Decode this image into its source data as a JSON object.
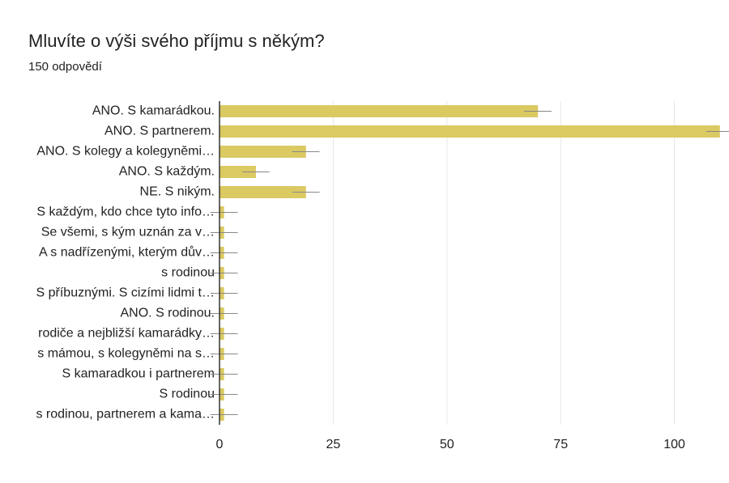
{
  "chart_data": {
    "type": "bar",
    "orientation": "horizontal",
    "title": "Mluvíte o výši svého příjmu s někým?",
    "subtitle": "150 odpovědí",
    "categories": [
      "ANO. S kamarádkou.",
      "ANO. S partnerem.",
      "ANO. S kolegy a kolegyněmi…",
      "ANO. S každým.",
      "NE. S nikým.",
      "S každým, kdo chce tyto info…",
      "Se všemi, s kým uznán za v…",
      "A s nadřízenými, kterým dův…",
      "s rodinou",
      "S příbuznými. S cizími lidmi t…",
      "ANO. S rodinou.",
      "rodiče a nejbližší kamarádky…",
      "s mámou, s kolegyněmi na s…",
      "S kamaradkou i partnerem",
      "S rodinou",
      "s rodinou, partnerem a kama…"
    ],
    "values": [
      70,
      110,
      19,
      8,
      19,
      1,
      1,
      1,
      1,
      1,
      1,
      1,
      1,
      1,
      1,
      1
    ],
    "errors": [
      3,
      3,
      3,
      3,
      3,
      3,
      3,
      3,
      3,
      3,
      3,
      3,
      3,
      3,
      3,
      3
    ],
    "color": "#dbc962",
    "xlim": [
      0,
      112
    ],
    "xticks": [
      0,
      25,
      50,
      75,
      100
    ],
    "grid": true
  }
}
